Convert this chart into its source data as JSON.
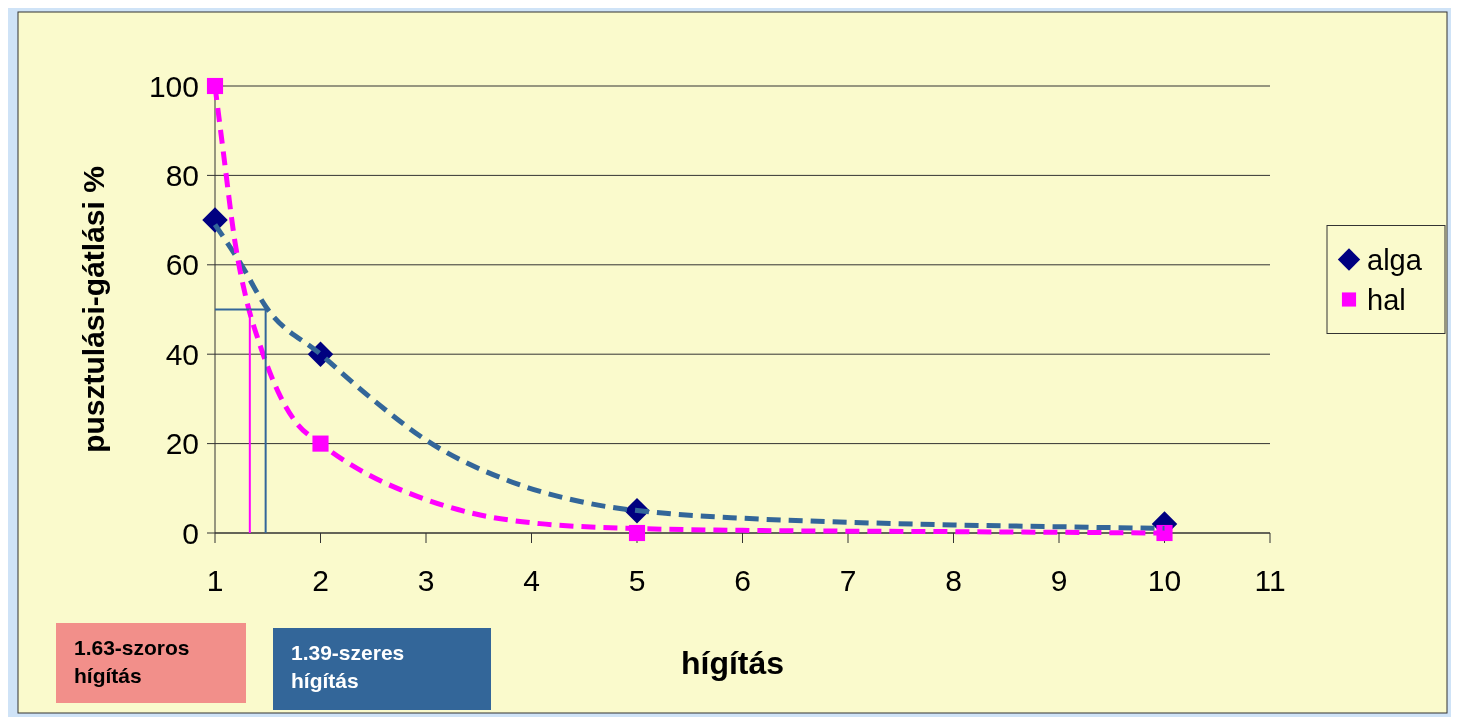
{
  "chart_data": {
    "type": "scatter",
    "xlabel": "hígítás",
    "ylabel": "pusztulási-gátlási %",
    "xlim": [
      1,
      11
    ],
    "xticks": [
      1,
      2,
      3,
      4,
      5,
      6,
      7,
      8,
      9,
      10,
      11
    ],
    "ylim": [
      0,
      100
    ],
    "yticks": [
      0,
      20,
      40,
      60,
      80,
      100
    ],
    "grid": "y",
    "legend": "right",
    "annotations": [
      "1.63-szoros hígítás",
      "1.39-szeres hígítás"
    ],
    "series": [
      {
        "name": "alga",
        "color": "#000080",
        "marker": "diamond",
        "x": [
          1,
          2,
          5,
          10
        ],
        "values": [
          70,
          40,
          5,
          2
        ]
      },
      {
        "name": "hal",
        "color": "#ff00ff",
        "marker": "square",
        "x": [
          1,
          2,
          5,
          10
        ],
        "values": [
          100,
          20,
          0,
          0
        ]
      },
      {
        "type": "line",
        "color": "#336699",
        "line_style": "dashed",
        "marker": "none",
        "x": [
          1,
          1.24,
          1.48,
          2,
          2.54,
          3,
          3.77,
          4.55,
          5.32,
          6,
          7,
          8,
          9,
          10
        ],
        "values": [
          69,
          60.4,
          50.7,
          40,
          29,
          20.8,
          11.8,
          6.6,
          4.3,
          3.3,
          2.4,
          1.8,
          1.4,
          1
        ]
      },
      {
        "type": "line",
        "color": "#ff00ff",
        "line_style": "dashed",
        "marker": "none",
        "x": [
          1,
          1.08,
          1.19,
          1.3,
          1.42,
          1.61,
          1.76,
          2,
          2.38,
          2.85,
          3.46,
          4.08,
          5,
          6,
          8,
          10
        ],
        "values": [
          100,
          85,
          65,
          52,
          42.5,
          31,
          25,
          20,
          14,
          8.8,
          4.3,
          2.1,
          1,
          0.6,
          0.3,
          0
        ]
      },
      {
        "type": "line",
        "color": "#336699",
        "line_style": "solid",
        "marker": "none",
        "x": [
          1,
          1.48,
          1.48
        ],
        "values": [
          50,
          50,
          0
        ]
      },
      {
        "type": "line",
        "color": "#ff00ff",
        "line_style": "solid",
        "marker": "none",
        "x": [
          1.33,
          1.33
        ],
        "values": [
          50,
          0
        ]
      }
    ]
  }
}
